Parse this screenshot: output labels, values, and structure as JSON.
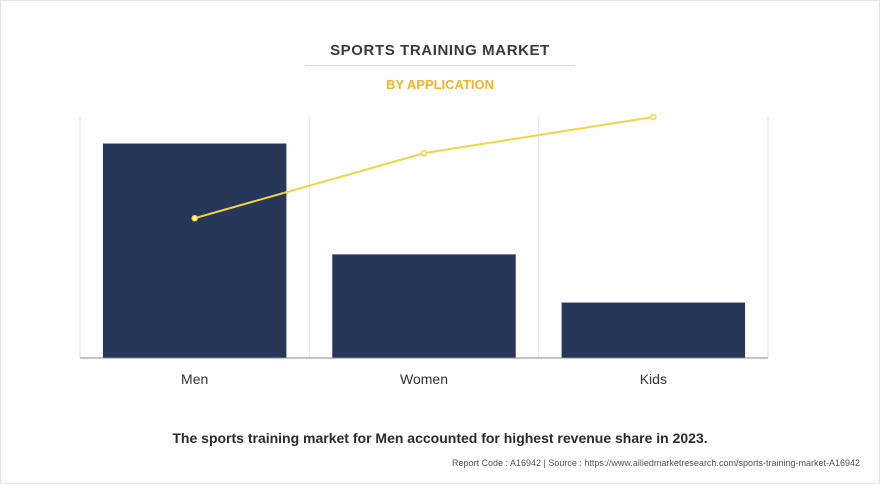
{
  "header": {
    "title": "SPORTS TRAINING MARKET",
    "subtitle": "BY APPLICATION"
  },
  "caption": "The sports training market for Men accounted for highest revenue share in 2023.",
  "footer": "Report Code : A16942  |  Source : https://www.alliedmarketresearch.com/sports-training-market-A16942",
  "colors": {
    "bar": "#26375a",
    "line": "#f5d442",
    "accent": "#f3b32a",
    "grid": "#e6e6e6",
    "axis": "#888888"
  },
  "chart_data": {
    "type": "bar",
    "categories": [
      "Men",
      "Women",
      "Kids"
    ],
    "series": [
      {
        "type": "bar",
        "values": [
          89,
          43,
          23
        ]
      },
      {
        "type": "line",
        "values": [
          58,
          85,
          100
        ]
      }
    ],
    "ylim": [
      0,
      100
    ],
    "grid": "vertical",
    "legend": "none"
  }
}
